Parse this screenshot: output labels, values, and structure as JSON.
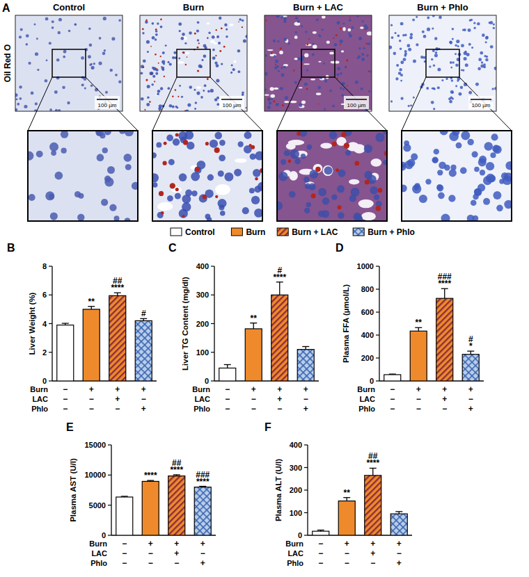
{
  "figure": {
    "panel_a": {
      "label": "A",
      "stain": "Oil Red O",
      "columns": [
        "Control",
        "Burn",
        "Burn + LAC",
        "Burn + Phlo"
      ],
      "scale_bar": "100 µm"
    },
    "legend": [
      {
        "name": "Control",
        "color": "#ffffff"
      },
      {
        "name": "Burn",
        "color": "#ef8a2c"
      },
      {
        "name": "Burn + LAC",
        "color": "#ef8a2c"
      },
      {
        "name": "Burn + Phlo",
        "color": "#b9cdea"
      }
    ]
  },
  "chart_data": [
    {
      "type": "bar",
      "panel": "B",
      "y_label": "Liver Weight (%)",
      "categories": [
        null,
        null,
        null,
        null
      ],
      "values": [
        3.9,
        5.0,
        5.95,
        4.2
      ],
      "errors": [
        0.12,
        0.2,
        0.2,
        0.15
      ],
      "colors": [
        "#ffffff",
        "#ef8a2c",
        "#ef8a2c",
        "#b9cdea"
      ],
      "ylim": [
        0,
        8
      ],
      "yticks": [
        0,
        2,
        4,
        6,
        8
      ],
      "annotations": [
        null,
        [
          "**"
        ],
        [
          "##",
          "****"
        ],
        [
          "#"
        ]
      ],
      "conditions": [
        {
          "name": "Burn",
          "values": [
            "−",
            "+",
            "+",
            "+"
          ]
        },
        {
          "name": "LAC",
          "values": [
            "−",
            "−",
            "+",
            "−"
          ]
        },
        {
          "name": "Phlo",
          "values": [
            "−",
            "−",
            "−",
            "+"
          ]
        }
      ]
    },
    {
      "type": "bar",
      "panel": "C",
      "y_label": "Liver TG Content (mg/dl)",
      "categories": [
        null,
        null,
        null,
        null
      ],
      "values": [
        45,
        182,
        300,
        110
      ],
      "errors": [
        12,
        20,
        45,
        10
      ],
      "colors": [
        "#ffffff",
        "#ef8a2c",
        "#ef8a2c",
        "#b9cdea"
      ],
      "ylim": [
        0,
        400
      ],
      "yticks": [
        0,
        100,
        200,
        300,
        400
      ],
      "annotations": [
        null,
        [
          "**"
        ],
        [
          "#",
          "****"
        ],
        null
      ],
      "conditions": [
        {
          "name": "Burn",
          "values": [
            "−",
            "+",
            "+",
            "+"
          ]
        },
        {
          "name": "LAC",
          "values": [
            "−",
            "−",
            "+",
            "−"
          ]
        },
        {
          "name": "Phlo",
          "values": [
            "−",
            "−",
            "−",
            "+"
          ]
        }
      ]
    },
    {
      "type": "bar",
      "panel": "D",
      "y_label": "Plasma FFA (µmol/L)",
      "categories": [
        null,
        null,
        null,
        null
      ],
      "values": [
        55,
        435,
        720,
        232
      ],
      "errors": [
        5,
        30,
        85,
        28
      ],
      "colors": [
        "#ffffff",
        "#ef8a2c",
        "#ef8a2c",
        "#b9cdea"
      ],
      "ylim": [
        0,
        1000
      ],
      "yticks": [
        0,
        200,
        400,
        600,
        800,
        1000
      ],
      "annotations": [
        null,
        [
          "**"
        ],
        [
          "###",
          "****"
        ],
        [
          "#",
          "*"
        ]
      ],
      "conditions": [
        {
          "name": "Burn",
          "values": [
            "−",
            "+",
            "+",
            "+"
          ]
        },
        {
          "name": "LAC",
          "values": [
            "−",
            "−",
            "+",
            "−"
          ]
        },
        {
          "name": "Phlo",
          "values": [
            "−",
            "−",
            "−",
            "+"
          ]
        }
      ]
    },
    {
      "type": "bar",
      "panel": "E",
      "y_label": "Plasma AST (U/l)",
      "categories": [
        null,
        null,
        null,
        null
      ],
      "values": [
        6350,
        8950,
        9850,
        8000
      ],
      "errors": [
        120,
        150,
        200,
        130
      ],
      "colors": [
        "#ffffff",
        "#ef8a2c",
        "#ef8a2c",
        "#b9cdea"
      ],
      "ylim": [
        0,
        15000
      ],
      "yticks": [
        0,
        5000,
        10000,
        15000
      ],
      "annotations": [
        null,
        [
          "****"
        ],
        [
          "##",
          "****"
        ],
        [
          "###",
          "****"
        ]
      ],
      "conditions": [
        {
          "name": "Burn",
          "values": [
            "−",
            "+",
            "+",
            "+"
          ]
        },
        {
          "name": "LAC",
          "values": [
            "−",
            "−",
            "+",
            "−"
          ]
        },
        {
          "name": "Phlo",
          "values": [
            "−",
            "−",
            "−",
            "+"
          ]
        }
      ]
    },
    {
      "type": "bar",
      "panel": "F",
      "y_label": "Plasma ALT (U/l)",
      "categories": [
        null,
        null,
        null,
        null
      ],
      "values": [
        18,
        152,
        265,
        95
      ],
      "errors": [
        5,
        15,
        32,
        10
      ],
      "colors": [
        "#ffffff",
        "#ef8a2c",
        "#ef8a2c",
        "#b9cdea"
      ],
      "ylim": [
        0,
        400
      ],
      "yticks": [
        0,
        100,
        200,
        300,
        400
      ],
      "annotations": [
        null,
        [
          "**"
        ],
        [
          "##",
          "****"
        ],
        null
      ],
      "conditions": [
        {
          "name": "Burn",
          "values": [
            "−",
            "+",
            "+",
            "+"
          ]
        },
        {
          "name": "LAC",
          "values": [
            "−",
            "−",
            "+",
            "−"
          ]
        },
        {
          "name": "Phlo",
          "values": [
            "−",
            "−",
            "−",
            "+"
          ]
        }
      ]
    }
  ]
}
